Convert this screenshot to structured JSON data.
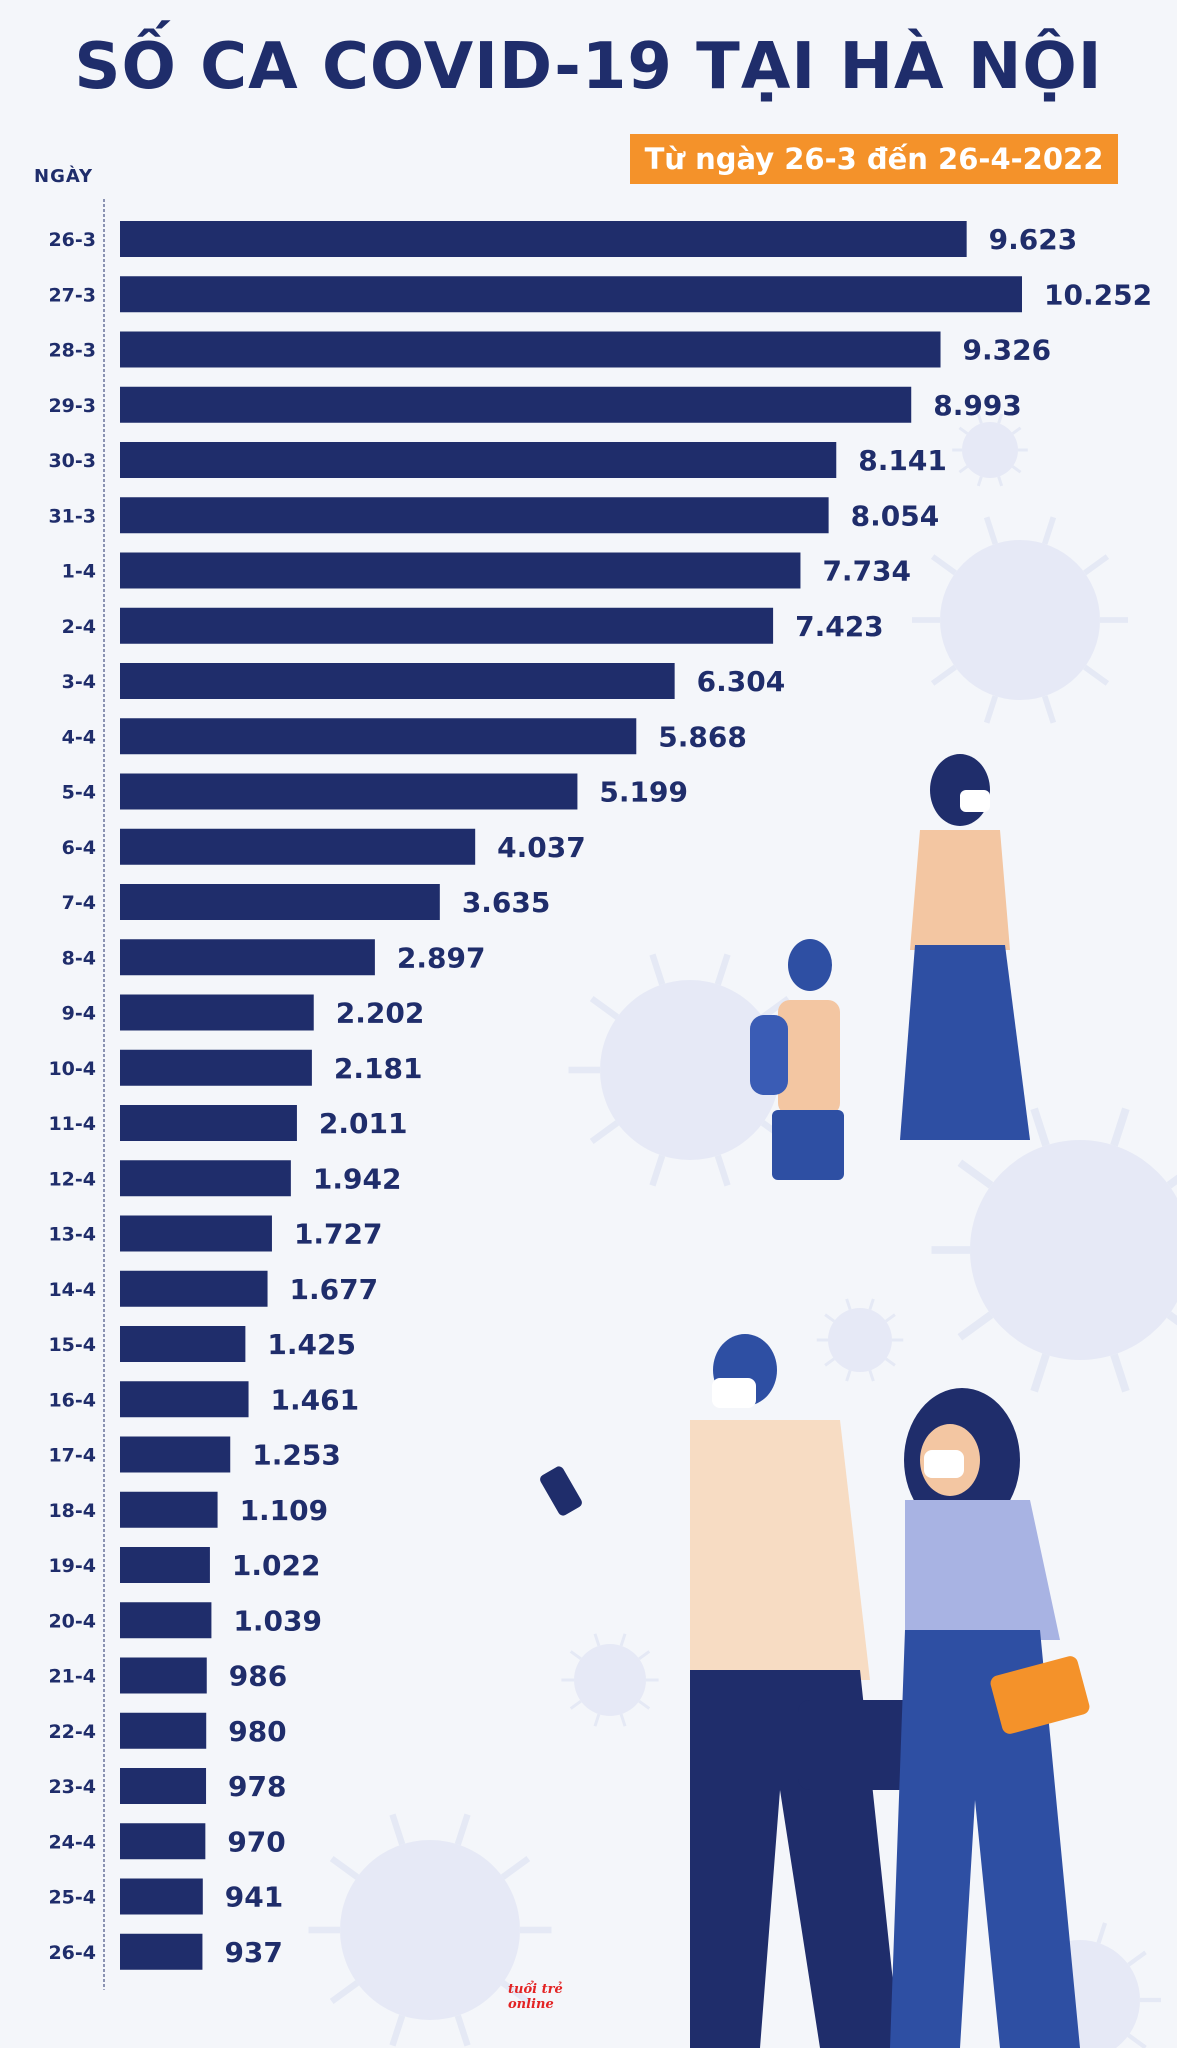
{
  "header": {
    "title": "SỐ CA COVID-19 TẠI HÀ NỘI",
    "subtitle": "Từ ngày 26-3 đến 26-4-2022"
  },
  "brand": {
    "logo_text": "tuổi trẻ online"
  },
  "colors": {
    "bar": "#1f2d6b",
    "title": "#1f2d6b",
    "subtitle_bg": "#f4922a",
    "subtitle_text": "#ffffff",
    "logo": "#e32323",
    "background": "#f4f6fa",
    "virus_decor": "#dfe4f3"
  },
  "chart_data": {
    "type": "bar",
    "orientation": "horizontal",
    "title": "SỐ CA COVID-19 TẠI HÀ NỘI",
    "subtitle": "Từ ngày 26-3 đến 26-4-2022",
    "ylabel": "NGÀY",
    "xlabel": "",
    "xlim": [
      0,
      10252
    ],
    "grid": false,
    "legend": "none",
    "categories": [
      "26-3",
      "27-3",
      "28-3",
      "29-3",
      "30-3",
      "31-3",
      "1-4",
      "2-4",
      "3-4",
      "4-4",
      "5-4",
      "6-4",
      "7-4",
      "8-4",
      "9-4",
      "10-4",
      "11-4",
      "12-4",
      "13-4",
      "14-4",
      "15-4",
      "16-4",
      "17-4",
      "18-4",
      "19-4",
      "20-4",
      "21-4",
      "22-4",
      "23-4",
      "24-4",
      "25-4",
      "26-4"
    ],
    "values": [
      9623,
      10252,
      9326,
      8993,
      8141,
      8054,
      7734,
      7423,
      6304,
      5868,
      5199,
      4037,
      3635,
      2897,
      2202,
      2181,
      2011,
      1942,
      1727,
      1677,
      1425,
      1461,
      1253,
      1109,
      1022,
      1039,
      986,
      980,
      978,
      970,
      941,
      937
    ],
    "data_labels": [
      "9.623",
      "10.252",
      "9.326",
      "8.993",
      "8.141",
      "8.054",
      "7.734",
      "7.423",
      "6.304",
      "5.868",
      "5.199",
      "4.037",
      "3.635",
      "2.897",
      "2.202",
      "2.181",
      "2.011",
      "1.942",
      "1.727",
      "1.677",
      "1.425",
      "1.461",
      "1.253",
      "1.109",
      "1.022",
      "1.039",
      "986",
      "980",
      "978",
      "970",
      "941",
      "937"
    ]
  }
}
